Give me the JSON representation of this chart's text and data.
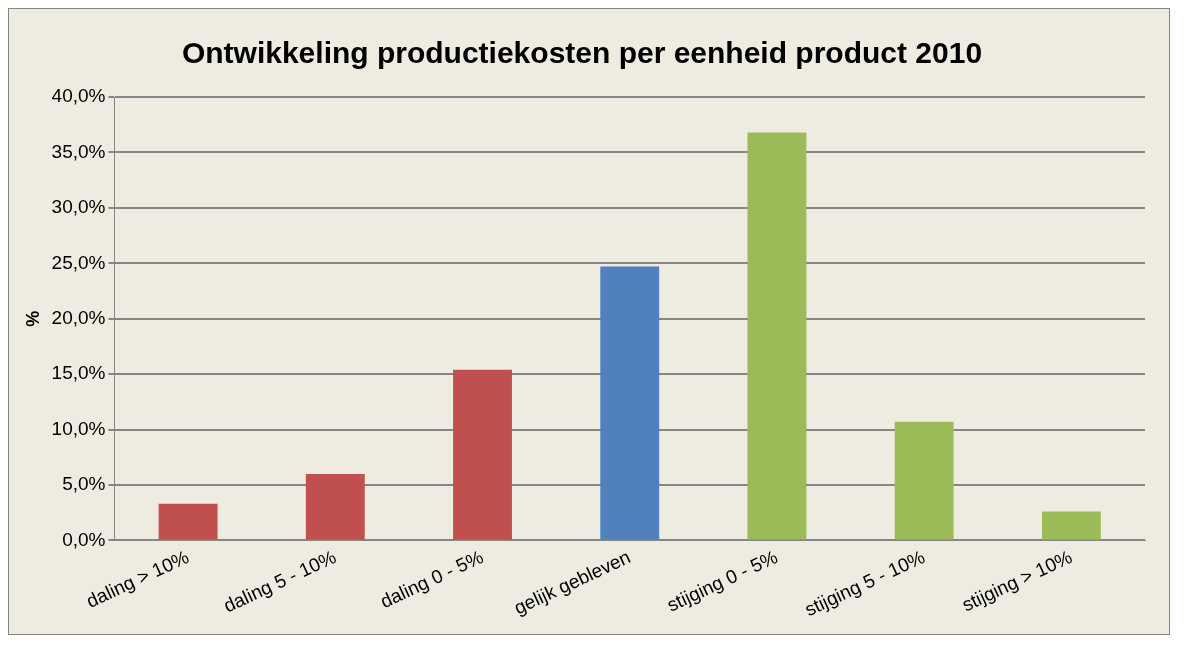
{
  "chart_data": {
    "type": "bar",
    "title": "Ontwikkeling productiekosten per eenheid product 2010",
    "ylabel": "%",
    "categories": [
      "daling > 10%",
      "daling 5 - 10%",
      "daling 0 - 5%",
      "gelijk gebleven",
      "stijging 0 - 5%",
      "stijging 5 - 10%",
      "stijging > 10%"
    ],
    "values": [
      3.3,
      6.0,
      15.4,
      24.7,
      36.8,
      10.7,
      2.6
    ],
    "colors": [
      "#c0504d",
      "#c0504d",
      "#c0504d",
      "#4f81bd",
      "#9bbb59",
      "#9bbb59",
      "#9bbb59"
    ],
    "ylim": [
      0,
      40
    ],
    "yticks": [
      {
        "value": 0,
        "label": "0,0%"
      },
      {
        "value": 5,
        "label": "5,0%"
      },
      {
        "value": 10,
        "label": "10,0%"
      },
      {
        "value": 15,
        "label": "15,0%"
      },
      {
        "value": 20,
        "label": "20,0%"
      },
      {
        "value": 25,
        "label": "25,0%"
      },
      {
        "value": 30,
        "label": "30,0%"
      },
      {
        "value": 35,
        "label": "35,0%"
      },
      {
        "value": 40,
        "label": "40,0%"
      }
    ],
    "grid": "y",
    "legend": false
  }
}
